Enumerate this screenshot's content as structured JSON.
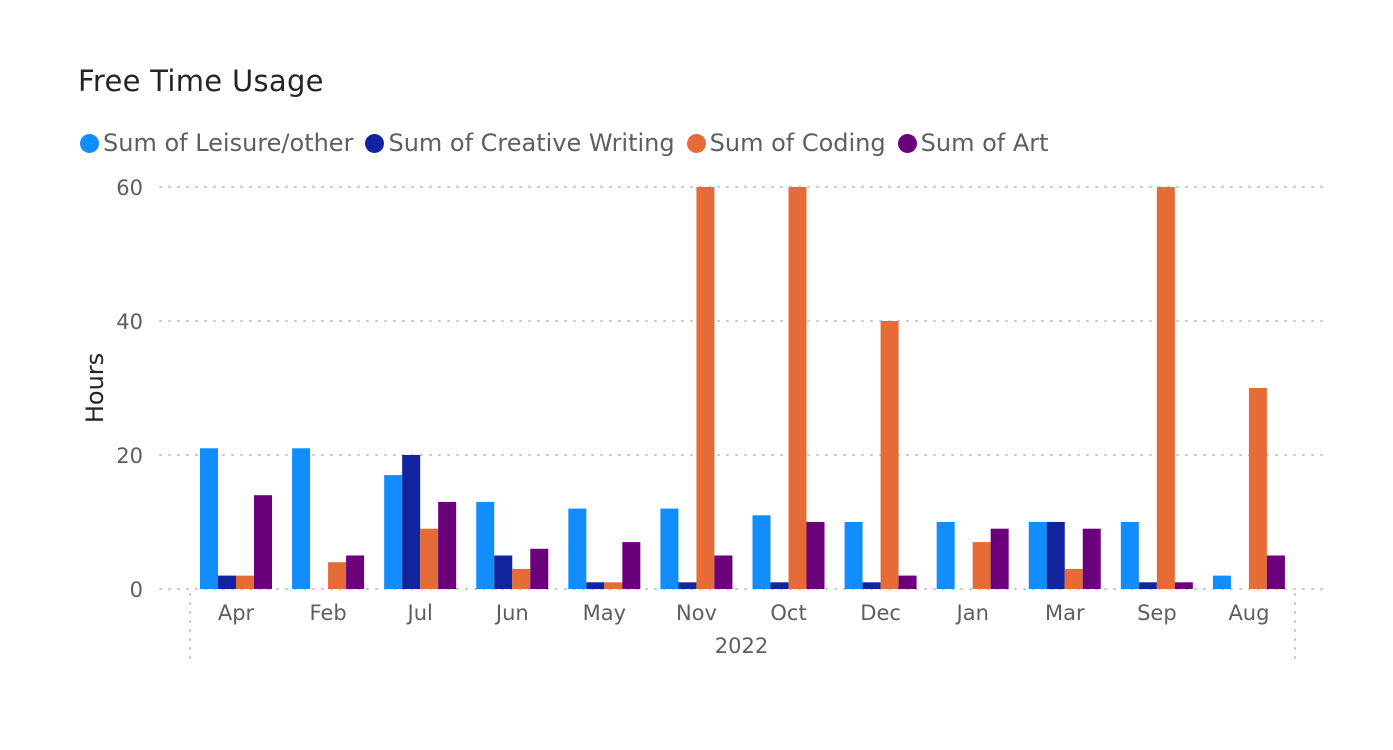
{
  "chart_data": {
    "type": "bar",
    "title": "Free Time Usage",
    "xlabel": "",
    "ylabel": "Hours",
    "x_group_label": "2022",
    "categories": [
      "Apr",
      "Feb",
      "Jul",
      "Jun",
      "May",
      "Nov",
      "Oct",
      "Dec",
      "Jan",
      "Mar",
      "Sep",
      "Aug"
    ],
    "series": [
      {
        "name": "Sum of Leisure/other",
        "color": "#118dff",
        "values": [
          21,
          21,
          17,
          13,
          12,
          12,
          11,
          10,
          10,
          10,
          10,
          2
        ]
      },
      {
        "name": "Sum of Creative Writing",
        "color": "#12239e",
        "values": [
          2,
          0,
          20,
          5,
          1,
          1,
          1,
          1,
          0,
          10,
          1,
          0
        ]
      },
      {
        "name": "Sum of Coding",
        "color": "#e66c37",
        "values": [
          2,
          4,
          9,
          3,
          1,
          60,
          60,
          40,
          7,
          3,
          60,
          30
        ]
      },
      {
        "name": "Sum of Art",
        "color": "#6b007b",
        "values": [
          14,
          5,
          13,
          6,
          7,
          5,
          10,
          2,
          9,
          9,
          1,
          5
        ]
      }
    ],
    "ylim": [
      0,
      60
    ],
    "yticks": [
      0,
      20,
      40,
      60
    ],
    "grid": true,
    "legend": "top-left"
  }
}
